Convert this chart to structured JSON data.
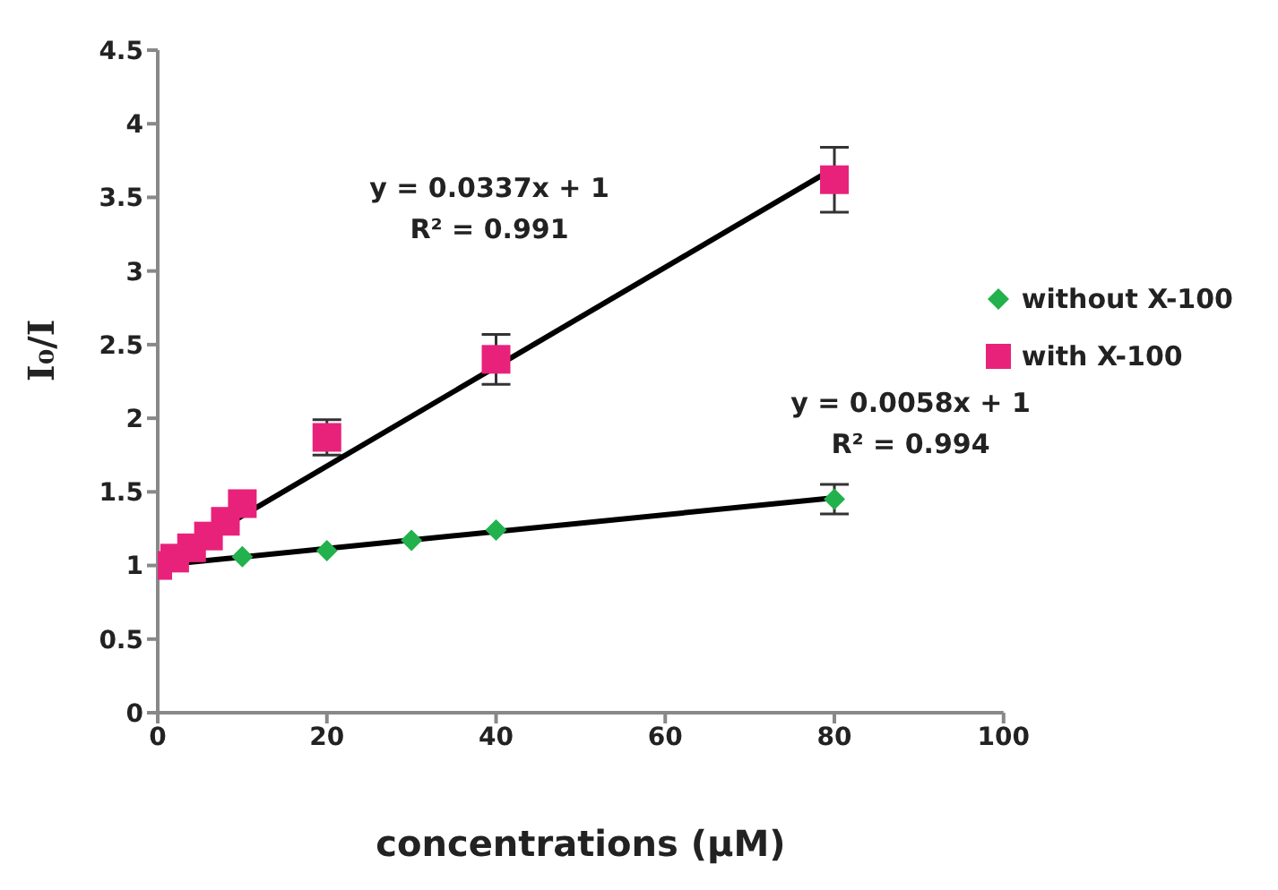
{
  "chart_data": {
    "type": "scatter",
    "xlabel": "concentrations (μM)",
    "ylabel": "I₀/I",
    "xlim": [
      0,
      100
    ],
    "xticks": [
      0,
      20,
      40,
      60,
      80,
      100
    ],
    "ylim": [
      0,
      4.5
    ],
    "yticks": [
      0,
      0.5,
      1,
      1.5,
      2,
      2.5,
      3,
      3.5,
      4,
      4.5
    ],
    "grid": false,
    "legend": "right",
    "annotations": [
      "y = 0.0337x + 1",
      "R² = 0.991",
      "y = 0.0058x + 1",
      "R² = 0.994"
    ],
    "series": [
      {
        "name": "without X-100",
        "color": "#22b14c",
        "marker": "diamond",
        "x": [
          10,
          20,
          30,
          40,
          80
        ],
        "values": [
          1.06,
          1.1,
          1.17,
          1.24,
          1.45
        ],
        "errors": [
          null,
          null,
          null,
          null,
          0.1
        ]
      },
      {
        "name": "with X-100",
        "color": "#e8227a",
        "marker": "square",
        "x": [
          0,
          2,
          4,
          6,
          8,
          10,
          20,
          40,
          80
        ],
        "values": [
          1,
          1.05,
          1.12,
          1.2,
          1.3,
          1.42,
          1.87,
          2.4,
          3.62
        ],
        "errors": [
          null,
          null,
          null,
          null,
          null,
          null,
          0.12,
          0.17,
          0.22
        ]
      },
      {
        "type": "line",
        "color": "#000000",
        "marker": "none",
        "x": [
          0,
          80
        ],
        "values": [
          1,
          3.7
        ]
      },
      {
        "type": "line",
        "color": "#000000",
        "marker": "none",
        "x": [
          0,
          80
        ],
        "values": [
          1,
          1.46
        ]
      }
    ]
  }
}
